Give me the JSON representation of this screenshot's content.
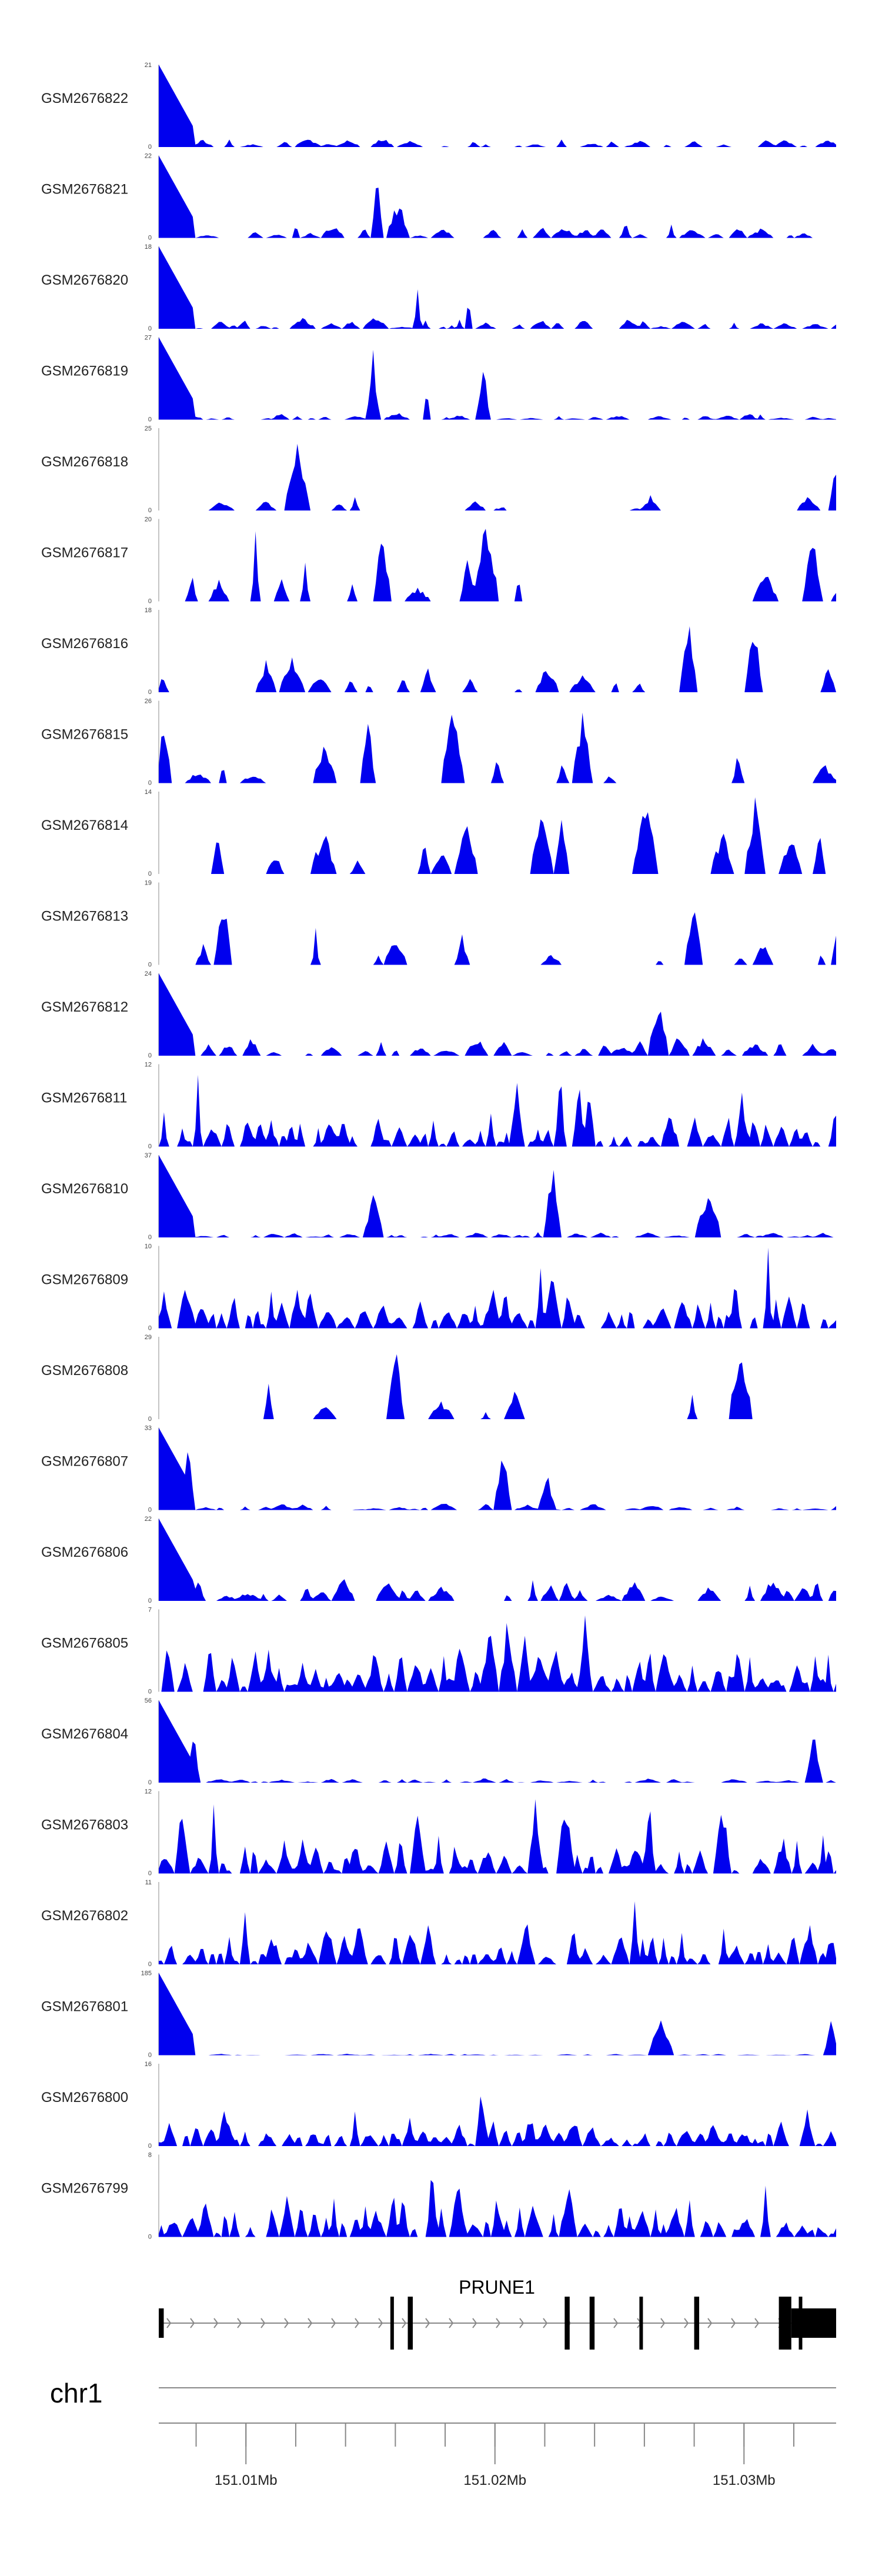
{
  "chart_data": {
    "type": "area",
    "title": "",
    "chromosome": "chr1",
    "xlim_mb": [
      151.0065,
      151.0337
    ],
    "fill_color": "#0000ee",
    "tracks": [
      {
        "name": "GSM2676822",
        "ymax": 21,
        "ymin": 0,
        "profile": "decay",
        "density": 0.55,
        "mean": 0.07,
        "seed": 22
      },
      {
        "name": "GSM2676821",
        "ymax": 22,
        "ymin": 0,
        "profile": "decay",
        "density": 0.55,
        "mean": 0.1,
        "seed": 21
      },
      {
        "name": "GSM2676820",
        "ymax": 18,
        "ymin": 0,
        "profile": "decay",
        "density": 0.6,
        "mean": 0.08,
        "seed": 20
      },
      {
        "name": "GSM2676819",
        "ymax": 27,
        "ymin": 0,
        "profile": "decay",
        "density": 0.6,
        "mean": 0.05,
        "seed": 19
      },
      {
        "name": "GSM2676818",
        "ymax": 25,
        "ymin": 0,
        "profile": "spiky",
        "density": 0.42,
        "mean": 0.12,
        "seed": 18
      },
      {
        "name": "GSM2676817",
        "ymax": 20,
        "ymin": 0,
        "profile": "spiky",
        "density": 0.32,
        "mean": 0.32,
        "seed": 17
      },
      {
        "name": "GSM2676816",
        "ymax": 18,
        "ymin": 0,
        "profile": "spiky",
        "density": 0.42,
        "mean": 0.32,
        "seed": 16
      },
      {
        "name": "GSM2676815",
        "ymax": 26,
        "ymin": 0,
        "profile": "sparse",
        "density": 0.32,
        "mean": 0.28,
        "seed": 15
      },
      {
        "name": "GSM2676814",
        "ymax": 14,
        "ymin": 0,
        "profile": "spiky",
        "density": 0.4,
        "mean": 0.36,
        "seed": 14
      },
      {
        "name": "GSM2676813",
        "ymax": 19,
        "ymin": 0,
        "profile": "sparse",
        "density": 0.36,
        "mean": 0.32,
        "seed": 13
      },
      {
        "name": "GSM2676812",
        "ymax": 24,
        "ymin": 0,
        "profile": "decay",
        "density": 0.45,
        "mean": 0.14,
        "seed": 12
      },
      {
        "name": "GSM2676811",
        "ymax": 12,
        "ymin": 0,
        "profile": "dense",
        "density": 0.8,
        "mean": 0.28,
        "seed": 11
      },
      {
        "name": "GSM2676810",
        "ymax": 37,
        "ymin": 0,
        "profile": "decay",
        "density": 0.6,
        "mean": 0.04,
        "seed": 10
      },
      {
        "name": "GSM2676809",
        "ymax": 10,
        "ymin": 0,
        "profile": "dense",
        "density": 0.8,
        "mean": 0.36,
        "seed": 9
      },
      {
        "name": "GSM2676808",
        "ymax": 29,
        "ymin": 0,
        "profile": "sparse",
        "density": 0.38,
        "mean": 0.22,
        "seed": 8
      },
      {
        "name": "GSM2676807",
        "ymax": 33,
        "ymin": 0,
        "profile": "decay",
        "density": 0.6,
        "mean": 0.05,
        "seed": 7
      },
      {
        "name": "GSM2676806",
        "ymax": 22,
        "ymin": 0,
        "profile": "decay",
        "density": 0.55,
        "mean": 0.16,
        "seed": 6
      },
      {
        "name": "GSM2676805",
        "ymax": 7,
        "ymin": 0,
        "profile": "dense",
        "density": 0.85,
        "mean": 0.36,
        "seed": 5
      },
      {
        "name": "GSM2676804",
        "ymax": 56,
        "ymin": 0,
        "profile": "decay",
        "density": 0.6,
        "mean": 0.03,
        "seed": 4
      },
      {
        "name": "GSM2676803",
        "ymax": 12,
        "ymin": 0,
        "profile": "dense",
        "density": 0.8,
        "mean": 0.26,
        "seed": 3
      },
      {
        "name": "GSM2676802",
        "ymax": 11,
        "ymin": 0,
        "profile": "dense",
        "density": 0.85,
        "mean": 0.3,
        "seed": 2
      },
      {
        "name": "GSM2676801",
        "ymax": 185,
        "ymin": 0,
        "profile": "decay",
        "density": 0.7,
        "mean": 0.01,
        "seed": 1
      },
      {
        "name": "GSM2676800",
        "ymax": 16,
        "ymin": 0,
        "profile": "dense",
        "density": 0.75,
        "mean": 0.26,
        "seed": 100
      },
      {
        "name": "GSM2676799",
        "ymax": 8,
        "ymin": 0,
        "profile": "dense",
        "density": 0.85,
        "mean": 0.36,
        "seed": 99
      }
    ],
    "gene": {
      "name": "PRUNE1",
      "strand": "+",
      "start_mb": 151.0065,
      "end_mb": 151.0337,
      "exons_mb": [
        {
          "start": 151.0065,
          "end": 151.0067,
          "thick": false
        },
        {
          "start": 151.0158,
          "end": 151.0159,
          "thick": true
        },
        {
          "start": 151.0165,
          "end": 151.0167,
          "thick": true
        },
        {
          "start": 151.0228,
          "end": 151.023,
          "thick": true
        },
        {
          "start": 151.0238,
          "end": 151.024,
          "thick": true
        },
        {
          "start": 151.0258,
          "end": 151.0259,
          "thick": true
        },
        {
          "start": 151.028,
          "end": 151.0282,
          "thick": true
        },
        {
          "start": 151.0322,
          "end": 151.0323,
          "thick": true
        },
        {
          "start": 151.0314,
          "end": 151.0319,
          "thick": true
        },
        {
          "start": 151.0319,
          "end": 151.0337,
          "thick": false
        }
      ]
    },
    "axis": {
      "major_ticks_mb": [
        151.01,
        151.02,
        151.03
      ],
      "major_labels": [
        "151.01Mb",
        "151.02Mb",
        "151.03Mb"
      ],
      "minor_tick_step_mb": 0.002
    }
  }
}
